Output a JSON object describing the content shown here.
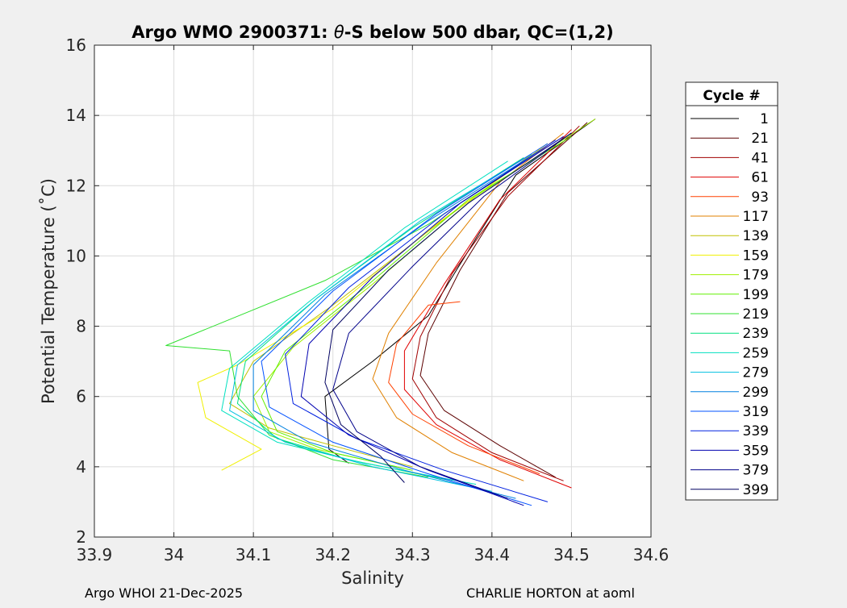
{
  "chart_data": {
    "type": "line",
    "title_prefix": "Argo WMO 2900371: ",
    "title_theta": "θ",
    "title_suffix": "-S below 500 dbar,  QC=(1,2)",
    "xlabel": "Salinity",
    "ylabel": "Potential Temperature (˚C)",
    "xlim": [
      33.9,
      34.6
    ],
    "ylim": [
      2,
      16
    ],
    "xticks": [
      "33.9",
      "34",
      "34.1",
      "34.2",
      "34.3",
      "34.4",
      "34.5",
      "34.6"
    ],
    "yticks": [
      "2",
      "4",
      "6",
      "8",
      "10",
      "12",
      "14",
      "16"
    ],
    "grid": true,
    "legend_title": "Cycle #",
    "legend_position": "outside-right",
    "series": [
      {
        "name": "1",
        "color": "#000000",
        "points": [
          [
            34.22,
            4.1
          ],
          [
            34.195,
            4.5
          ],
          [
            34.19,
            6.0
          ],
          [
            34.25,
            7.0
          ],
          [
            34.32,
            8.3
          ],
          [
            34.38,
            10.5
          ],
          [
            34.43,
            12.3
          ],
          [
            34.53,
            13.9
          ]
        ]
      },
      {
        "name": "21",
        "color": "#5c0000",
        "points": [
          [
            34.48,
            3.7
          ],
          [
            34.41,
            4.6
          ],
          [
            34.34,
            5.6
          ],
          [
            34.31,
            6.6
          ],
          [
            34.32,
            7.8
          ],
          [
            34.36,
            9.6
          ],
          [
            34.42,
            11.8
          ],
          [
            34.52,
            13.8
          ]
        ]
      },
      {
        "name": "41",
        "color": "#a00000",
        "points": [
          [
            34.49,
            3.6
          ],
          [
            34.4,
            4.4
          ],
          [
            34.33,
            5.4
          ],
          [
            34.3,
            6.5
          ],
          [
            34.31,
            7.7
          ],
          [
            34.35,
            9.5
          ],
          [
            34.42,
            11.7
          ],
          [
            34.51,
            13.7
          ]
        ]
      },
      {
        "name": "61",
        "color": "#e00000",
        "points": [
          [
            34.5,
            3.4
          ],
          [
            34.41,
            4.2
          ],
          [
            34.33,
            5.2
          ],
          [
            34.29,
            6.2
          ],
          [
            34.29,
            7.3
          ],
          [
            34.34,
            9.2
          ],
          [
            34.41,
            11.6
          ],
          [
            34.5,
            13.6
          ]
        ]
      },
      {
        "name": "93",
        "color": "#ff4000",
        "points": [
          [
            34.46,
            3.8
          ],
          [
            34.37,
            4.6
          ],
          [
            34.3,
            5.5
          ],
          [
            34.27,
            6.4
          ],
          [
            34.28,
            7.5
          ],
          [
            34.32,
            8.6
          ],
          [
            34.36,
            8.7
          ]
        ]
      },
      {
        "name": "117",
        "color": "#e08000",
        "points": [
          [
            34.44,
            3.6
          ],
          [
            34.35,
            4.4
          ],
          [
            34.28,
            5.4
          ],
          [
            34.25,
            6.5
          ],
          [
            34.27,
            7.8
          ],
          [
            34.33,
            9.8
          ],
          [
            34.41,
            12.1
          ],
          [
            34.49,
            13.5
          ]
        ]
      },
      {
        "name": "139",
        "color": "#c0c000",
        "points": [
          [
            34.3,
            4.0
          ],
          [
            34.2,
            4.6
          ],
          [
            34.12,
            5.1
          ],
          [
            34.07,
            5.8
          ],
          [
            34.1,
            7.0
          ],
          [
            34.2,
            8.6
          ],
          [
            34.32,
            10.7
          ],
          [
            34.45,
            12.9
          ]
        ]
      },
      {
        "name": "159",
        "color": "#f0f000",
        "points": [
          [
            34.06,
            3.9
          ],
          [
            34.11,
            4.5
          ],
          [
            34.04,
            5.4
          ],
          [
            34.03,
            6.4
          ],
          [
            34.08,
            6.9
          ],
          [
            34.2,
            8.5
          ],
          [
            34.33,
            10.9
          ],
          [
            34.47,
            13.2
          ]
        ]
      },
      {
        "name": "179",
        "color": "#a0f000",
        "points": [
          [
            34.28,
            4.0
          ],
          [
            34.18,
            4.5
          ],
          [
            34.12,
            5.0
          ],
          [
            34.1,
            6.0
          ],
          [
            34.15,
            7.4
          ],
          [
            34.25,
            9.2
          ],
          [
            34.38,
            11.7
          ],
          [
            34.53,
            13.9
          ]
        ]
      },
      {
        "name": "199",
        "color": "#60f000",
        "points": [
          [
            34.3,
            3.9
          ],
          [
            34.2,
            4.4
          ],
          [
            34.13,
            5.0
          ],
          [
            34.11,
            6.0
          ],
          [
            34.14,
            7.3
          ],
          [
            34.24,
            9.1
          ],
          [
            34.37,
            11.6
          ],
          [
            34.5,
            13.4
          ]
        ]
      },
      {
        "name": "219",
        "color": "#30e030",
        "points": [
          [
            34.32,
            3.7
          ],
          [
            34.2,
            4.2
          ],
          [
            34.12,
            4.9
          ],
          [
            34.08,
            6.0
          ],
          [
            34.07,
            7.3
          ],
          [
            33.99,
            7.45
          ],
          [
            34.19,
            9.3
          ],
          [
            34.32,
            10.9
          ],
          [
            34.46,
            13.0
          ]
        ]
      },
      {
        "name": "239",
        "color": "#00e080",
        "points": [
          [
            34.35,
            3.6
          ],
          [
            34.22,
            4.2
          ],
          [
            34.13,
            4.8
          ],
          [
            34.08,
            5.8
          ],
          [
            34.09,
            7.0
          ],
          [
            34.18,
            8.8
          ],
          [
            34.3,
            10.8
          ],
          [
            34.44,
            12.8
          ]
        ]
      },
      {
        "name": "259",
        "color": "#00e0c0",
        "points": [
          [
            34.38,
            3.5
          ],
          [
            34.24,
            4.1
          ],
          [
            34.13,
            4.7
          ],
          [
            34.06,
            5.6
          ],
          [
            34.07,
            6.8
          ],
          [
            34.17,
            8.7
          ],
          [
            34.29,
            10.8
          ],
          [
            34.42,
            12.7
          ]
        ]
      },
      {
        "name": "279",
        "color": "#00c0e0",
        "points": [
          [
            34.4,
            3.3
          ],
          [
            34.25,
            4.0
          ],
          [
            34.14,
            4.7
          ],
          [
            34.07,
            5.6
          ],
          [
            34.08,
            6.9
          ],
          [
            34.18,
            8.8
          ],
          [
            34.31,
            11.0
          ],
          [
            34.45,
            12.9
          ]
        ]
      },
      {
        "name": "299",
        "color": "#0080e0",
        "points": [
          [
            34.43,
            3.1
          ],
          [
            34.29,
            3.9
          ],
          [
            34.17,
            4.7
          ],
          [
            34.1,
            5.6
          ],
          [
            34.1,
            6.9
          ],
          [
            34.19,
            8.9
          ],
          [
            34.32,
            11.0
          ],
          [
            34.46,
            13.0
          ]
        ]
      },
      {
        "name": "319",
        "color": "#0050ff",
        "points": [
          [
            34.45,
            2.9
          ],
          [
            34.32,
            3.8
          ],
          [
            34.2,
            4.7
          ],
          [
            34.12,
            5.7
          ],
          [
            34.11,
            7.0
          ],
          [
            34.2,
            9.0
          ],
          [
            34.33,
            11.2
          ],
          [
            34.47,
            13.2
          ]
        ]
      },
      {
        "name": "339",
        "color": "#0020e0",
        "points": [
          [
            34.47,
            3.0
          ],
          [
            34.34,
            3.9
          ],
          [
            34.23,
            4.8
          ],
          [
            34.15,
            5.8
          ],
          [
            34.14,
            7.2
          ],
          [
            34.22,
            9.1
          ],
          [
            34.34,
            11.2
          ],
          [
            34.48,
            13.3
          ]
        ]
      },
      {
        "name": "359",
        "color": "#0000b0",
        "points": [
          [
            34.44,
            2.9
          ],
          [
            34.32,
            3.9
          ],
          [
            34.22,
            4.9
          ],
          [
            34.16,
            6.0
          ],
          [
            34.17,
            7.5
          ],
          [
            34.25,
            9.4
          ],
          [
            34.36,
            11.5
          ],
          [
            34.49,
            13.4
          ]
        ]
      },
      {
        "name": "379",
        "color": "#00008a",
        "points": [
          [
            34.42,
            3.1
          ],
          [
            34.31,
            4.0
          ],
          [
            34.23,
            5.0
          ],
          [
            34.2,
            6.2
          ],
          [
            34.22,
            7.8
          ],
          [
            34.3,
            9.7
          ],
          [
            34.39,
            11.7
          ],
          [
            34.5,
            13.5
          ]
        ]
      },
      {
        "name": "399",
        "color": "#000060",
        "points": [
          [
            34.29,
            3.55
          ],
          [
            34.26,
            4.3
          ],
          [
            34.21,
            5.2
          ],
          [
            34.19,
            6.4
          ],
          [
            34.2,
            7.9
          ],
          [
            34.27,
            9.6
          ],
          [
            34.37,
            11.5
          ],
          [
            34.5,
            13.5
          ]
        ]
      }
    ]
  },
  "footer": {
    "left": "Argo WHOI 21-Dec-2025",
    "right": "CHARLIE HORTON at aoml"
  }
}
